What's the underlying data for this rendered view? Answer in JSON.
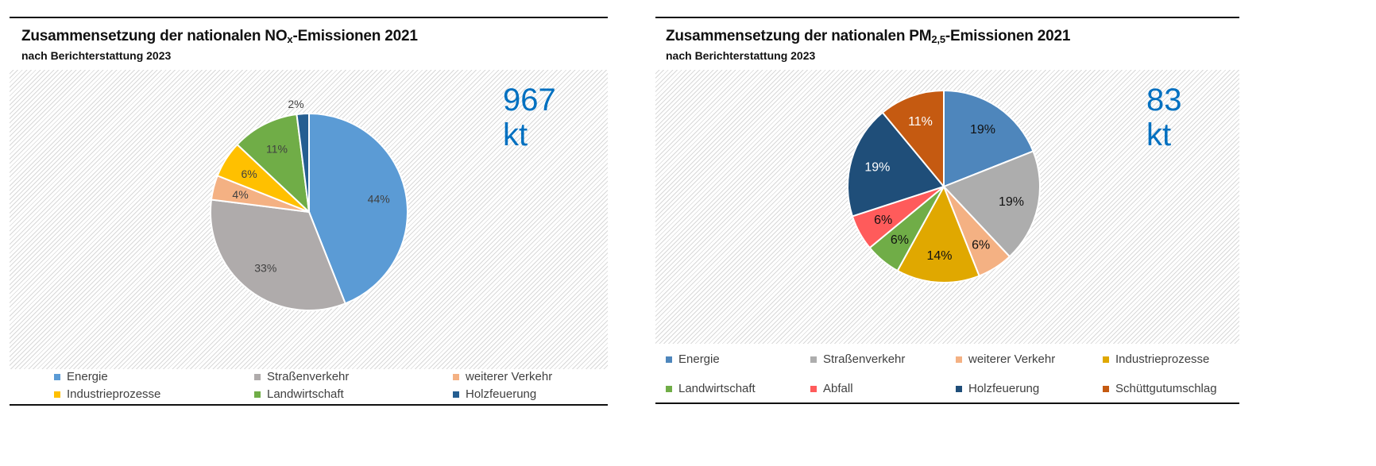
{
  "chart_data": [
    {
      "type": "pie",
      "title": "Zusammensetzung der nationalen NO",
      "title_sub": "x",
      "title_rest": "-Emissionen 2021",
      "subtitle": "nach Berichterstattung 2023",
      "total_label": "967 kt",
      "slices": [
        {
          "name": "Energie",
          "value": 44,
          "label": "44%",
          "color": "#5B9BD5",
          "label_color": "#404040"
        },
        {
          "name": "Straßenverkehr",
          "value": 33,
          "label": "33%",
          "color": "#AFABAB",
          "label_color": "#404040"
        },
        {
          "name": "weiterer Verkehr",
          "value": 4,
          "label": "4%",
          "color": "#F4B183",
          "label_color": "#404040"
        },
        {
          "name": "Industrieprozesse",
          "value": 6,
          "label": "6%",
          "color": "#FFC000",
          "label_color": "#404040"
        },
        {
          "name": "Landwirtschaft",
          "value": 11,
          "label": "11%",
          "color": "#70AD47",
          "label_color": "#404040"
        },
        {
          "name": "Holzfeuerung",
          "value": 2,
          "label": "2%",
          "color": "#255E91",
          "label_color": "#404040"
        }
      ],
      "legend": "bottom"
    },
    {
      "type": "pie",
      "title": "Zusammensetzung der nationalen PM",
      "title_sub": "2,5",
      "title_rest": "-Emissionen 2021",
      "subtitle": "nach Berichterstattung 2023",
      "total_label": "83 kt",
      "slices": [
        {
          "name": "Energie",
          "value": 19,
          "label": "19%",
          "color": "#4E86BC",
          "label_color": "#111111"
        },
        {
          "name": "Straßenverkehr",
          "value": 19,
          "label": "19%",
          "color": "#ADADAD",
          "label_color": "#111111"
        },
        {
          "name": "weiterer Verkehr",
          "value": 6,
          "label": "6%",
          "color": "#F4B183",
          "label_color": "#111111"
        },
        {
          "name": "Industrieprozesse",
          "value": 14,
          "label": "14%",
          "color": "#E0A800",
          "label_color": "#111111"
        },
        {
          "name": "Landwirtschaft",
          "value": 6,
          "label": "6%",
          "color": "#70AD47",
          "label_color": "#111111"
        },
        {
          "name": "Abfall",
          "value": 6,
          "label": "6%",
          "color": "#FF5B5B",
          "label_color": "#111111"
        },
        {
          "name": "Holzfeuerung",
          "value": 19,
          "label": "19%",
          "color": "#1F4E79",
          "label_color": "#FFFFFF"
        },
        {
          "name": "Schüttgutumschlag",
          "value": 11,
          "label": "11%",
          "color": "#C55A11",
          "label_color": "#FFFFFF"
        }
      ],
      "legend": "bottom"
    }
  ]
}
